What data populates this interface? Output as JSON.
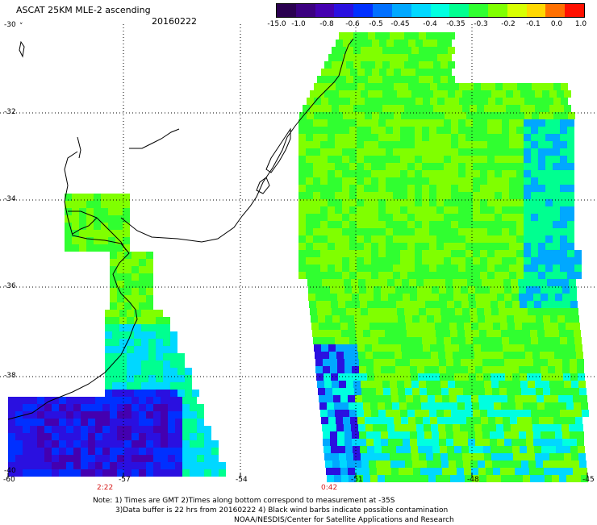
{
  "header": {
    "title": "ASCAT 25KM MLE-2 ascending",
    "date": "20160222",
    "north_marker": "˅"
  },
  "colorbar": {
    "colors": [
      "#2a0050",
      "#3b0080",
      "#4400b0",
      "#2a10e0",
      "#0030ff",
      "#0070ff",
      "#00a8ff",
      "#00d8ff",
      "#00ffe0",
      "#00ff90",
      "#30ff30",
      "#80ff00",
      "#d8ff00",
      "#ffd800",
      "#ff7000",
      "#ff1000"
    ],
    "labels": [
      "-15.0",
      "-1.0",
      "-0.8",
      "-0.6",
      "-0.5",
      "-0.45",
      "-0.4",
      "-0.35",
      "-0.3",
      "-0.2",
      "-0.1",
      "0.0",
      "1.0"
    ]
  },
  "axes": {
    "left_y_ticks": [
      "-30",
      "-32",
      "-34",
      "-36",
      "-38",
      "-40"
    ],
    "bottom_x_ticks": [
      "-60",
      "-57",
      "-54",
      "-51",
      "-48",
      "-45"
    ],
    "time_labels": [
      "2:22",
      "0:42"
    ]
  },
  "footer": {
    "line1": "Note: 1) Times are GMT 2)Times along bottom correspond to measurement at -35S",
    "line2": "3)Data buffer is 22 hrs from 20160222 4) Black wind barbs indicate possible contamination",
    "line3": "NOAA/NESDIS/Center for Satellite Applications and Research"
  }
}
